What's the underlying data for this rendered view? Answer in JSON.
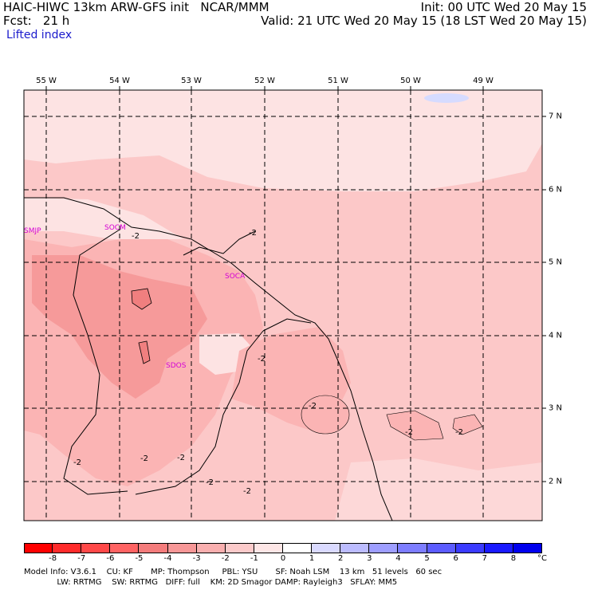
{
  "header": {
    "model_line": "HAIC-HIWC 13km ARW-GFS init   NCAR/MMM",
    "fcst_line": "Fcst:   21 h",
    "field_label": "Lifted index",
    "init_line": "Init: 00 UTC Wed 20 May 15",
    "valid_line": "Valid: 21 UTC Wed 20 May 15 (18 LST Wed 20 May 15)"
  },
  "map": {
    "longitude_labels": [
      "55 W",
      "54 W",
      "53 W",
      "52 W",
      "51 W",
      "50 W",
      "49 W"
    ],
    "latitude_labels": [
      "7 N",
      "6 N",
      "5 N",
      "4 N",
      "3 N",
      "2 N"
    ],
    "stations": [
      {
        "id": "SMJP"
      },
      {
        "id": "SOCM"
      },
      {
        "id": "SOCA"
      },
      {
        "id": "SDOS"
      }
    ],
    "contour_labels": [
      "-2",
      "-2",
      "-2",
      "-2",
      "-2",
      "-2",
      "-2",
      "-2",
      "-2",
      "-2",
      "-2"
    ],
    "colors": {
      "light": "#fde3e3",
      "mid": "#fcc8c8",
      "med": "#fbb4b4",
      "dark": "#f69a9a",
      "darkest": "#f07f7f",
      "station": "#d400d4",
      "positive": "#d6dbff"
    }
  },
  "colorbar": {
    "ticks": [
      "-8",
      "-7",
      "-6",
      "-5",
      "-4",
      "-3",
      "-2",
      "-1",
      "0",
      "1",
      "2",
      "3",
      "4",
      "5",
      "6",
      "7",
      "8"
    ],
    "unit": "°C",
    "colors": [
      "#ff0000",
      "#ff2b2b",
      "#ff4848",
      "#ff6363",
      "#f47c7c",
      "#f79797",
      "#f9afaf",
      "#fbcaca",
      "#fde6e6",
      "#ffffff",
      "#dadaff",
      "#bcbcff",
      "#9e9eff",
      "#7d7dff",
      "#5c5cff",
      "#3b3bff",
      "#1a1aff",
      "#0000ee"
    ]
  },
  "footer": {
    "line1": "Model Info: V3.6.1    CU: KF       MP: Thompson     PBL: YSU       SF: Noah LSM    13 km   51 levels   60 sec",
    "line2": "             LW: RRTMG    SW: RRTMG   DIFF: full    KM: 2D Smagor DAMP: Rayleigh3   SFLAY: MM5"
  }
}
